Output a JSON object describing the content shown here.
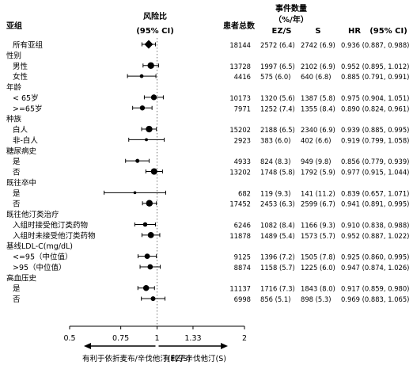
{
  "header": {
    "subgroup": "亚组",
    "ratio_line1": "风险比",
    "ratio_line2": "(95% CI)",
    "total": "患者总数",
    "events_line1": "事件数量",
    "events_line2": "（%/年）",
    "ezs": "EZ/S",
    "s": "S",
    "hr": "HR",
    "hr_ci": "(95% CI)"
  },
  "chart_data": {
    "type": "forest",
    "x_scale": "log",
    "xlim": [
      0.5,
      2
    ],
    "reference": 1,
    "ticks": [
      "0.5",
      "0.75",
      "1",
      "1.33",
      "2"
    ],
    "tick_values": [
      0.5,
      0.75,
      1,
      1.33,
      2
    ],
    "favors_left": "有利于依折麦布/辛伐他汀(EZ/S)",
    "favors_right": "有利于辛伐他汀(S)",
    "rows": [
      {
        "label": "所有亚组",
        "category": false,
        "total": "18144",
        "ezs": "2572 (6.4)",
        "s": "2742 (6.9)",
        "hr_text": "0.936 (0.887, 0.988)",
        "hr": 0.936,
        "lo": 0.887,
        "hi": 0.988
      },
      {
        "label": "性别",
        "category": true
      },
      {
        "label": "男性",
        "category": false,
        "total": "13728",
        "ezs": "1997 (6.5)",
        "s": "2102 (6.9)",
        "hr_text": "0.952 (0.895, 1.012)",
        "hr": 0.952,
        "lo": 0.895,
        "hi": 1.012
      },
      {
        "label": "女性",
        "category": false,
        "total": "4416",
        "ezs": "575 (6.0)",
        "s": "640 (6.8)",
        "hr_text": "0.885 (0.791, 0.991)",
        "hr": 0.885,
        "lo": 0.791,
        "hi": 0.991
      },
      {
        "label": "年龄",
        "category": true
      },
      {
        "label": "< 65岁",
        "category": false,
        "total": "10173",
        "ezs": "1320 (5.6)",
        "s": "1387 (5.8)",
        "hr_text": "0.975 (0.904, 1.051)",
        "hr": 0.975,
        "lo": 0.904,
        "hi": 1.051
      },
      {
        "label": ">=65岁",
        "category": false,
        "total": "7971",
        "ezs": "1252 (7.4)",
        "s": "1355 (8.4)",
        "hr_text": "0.890 (0.824, 0.961)",
        "hr": 0.89,
        "lo": 0.824,
        "hi": 0.961
      },
      {
        "label": "种族",
        "category": true
      },
      {
        "label": "白人",
        "category": false,
        "total": "15202",
        "ezs": "2188 (6.5)",
        "s": "2340 (6.9)",
        "hr_text": "0.939 (0.885, 0.995)",
        "hr": 0.939,
        "lo": 0.885,
        "hi": 0.995
      },
      {
        "label": "非-白人",
        "category": false,
        "total": "2923",
        "ezs": "383 (6.0)",
        "s": "402 (6.6)",
        "hr_text": "0.919 (0.799, 1.058)",
        "hr": 0.919,
        "lo": 0.799,
        "hi": 1.058
      },
      {
        "label": "糖尿病史",
        "category": true
      },
      {
        "label": "是",
        "category": false,
        "total": "4933",
        "ezs": "824 (8.3)",
        "s": "949 (9.8)",
        "hr_text": "0.856 (0.779, 0.939)",
        "hr": 0.856,
        "lo": 0.779,
        "hi": 0.939
      },
      {
        "label": "否",
        "category": false,
        "total": "13202",
        "ezs": "1748 (5.8)",
        "s": "1792 (5.9)",
        "hr_text": "0.977 (0.915, 1.044)",
        "hr": 0.977,
        "lo": 0.915,
        "hi": 1.044
      },
      {
        "label": "既往卒中",
        "category": true
      },
      {
        "label": "是",
        "category": false,
        "total": "682",
        "ezs": "119 (9.3)",
        "s": "141 (11.2)",
        "hr_text": "0.839 (0.657, 1.071)",
        "hr": 0.839,
        "lo": 0.657,
        "hi": 1.071
      },
      {
        "label": "否",
        "category": false,
        "total": "17452",
        "ezs": "2453 (6.3)",
        "s": "2599 (6.7)",
        "hr_text": "0.941 (0.891, 0.995)",
        "hr": 0.941,
        "lo": 0.891,
        "hi": 0.995
      },
      {
        "label": "既往他汀类治疗",
        "category": true
      },
      {
        "label": "入组时接受他汀类药物",
        "category": false,
        "total": "6246",
        "ezs": "1082 (8.4)",
        "s": "1166 (9.3)",
        "hr_text": "0.910 (0.838, 0.988)",
        "hr": 0.91,
        "lo": 0.838,
        "hi": 0.988
      },
      {
        "label": "入组时未接受他汀类药物",
        "category": false,
        "total": "11878",
        "ezs": "1489 (5.4)",
        "s": "1573 (5.7)",
        "hr_text": "0.952 (0.887, 1.022)",
        "hr": 0.952,
        "lo": 0.887,
        "hi": 1.022
      },
      {
        "label": "基线LDL-C(mg/dL)",
        "category": true
      },
      {
        "label": "<=95（中位值）",
        "category": false,
        "total": "9125",
        "ezs": "1396 (7.2)",
        "s": "1505 (7.8)",
        "hr_text": "0.925 (0.860, 0.995)",
        "hr": 0.925,
        "lo": 0.86,
        "hi": 0.995
      },
      {
        "label": ">95（中位值）",
        "category": false,
        "total": "8874",
        "ezs": "1158 (5.7)",
        "s": "1225 (6.0)",
        "hr_text": "0.947 (0.874, 1.026)",
        "hr": 0.947,
        "lo": 0.874,
        "hi": 1.026
      },
      {
        "label": "高血压史",
        "category": true
      },
      {
        "label": "是",
        "category": false,
        "total": "11137",
        "ezs": "1716 (7.3)",
        "s": "1843 (8.0)",
        "hr_text": "0.917 (0.859, 0.980)",
        "hr": 0.917,
        "lo": 0.859,
        "hi": 0.98
      },
      {
        "label": "否",
        "category": false,
        "total": "6998",
        "ezs": "856 (5.1)",
        "s": "898 (5.3)",
        "hr_text": "0.969 (0.883, 1.065)",
        "hr": 0.969,
        "lo": 0.883,
        "hi": 1.065
      }
    ]
  }
}
